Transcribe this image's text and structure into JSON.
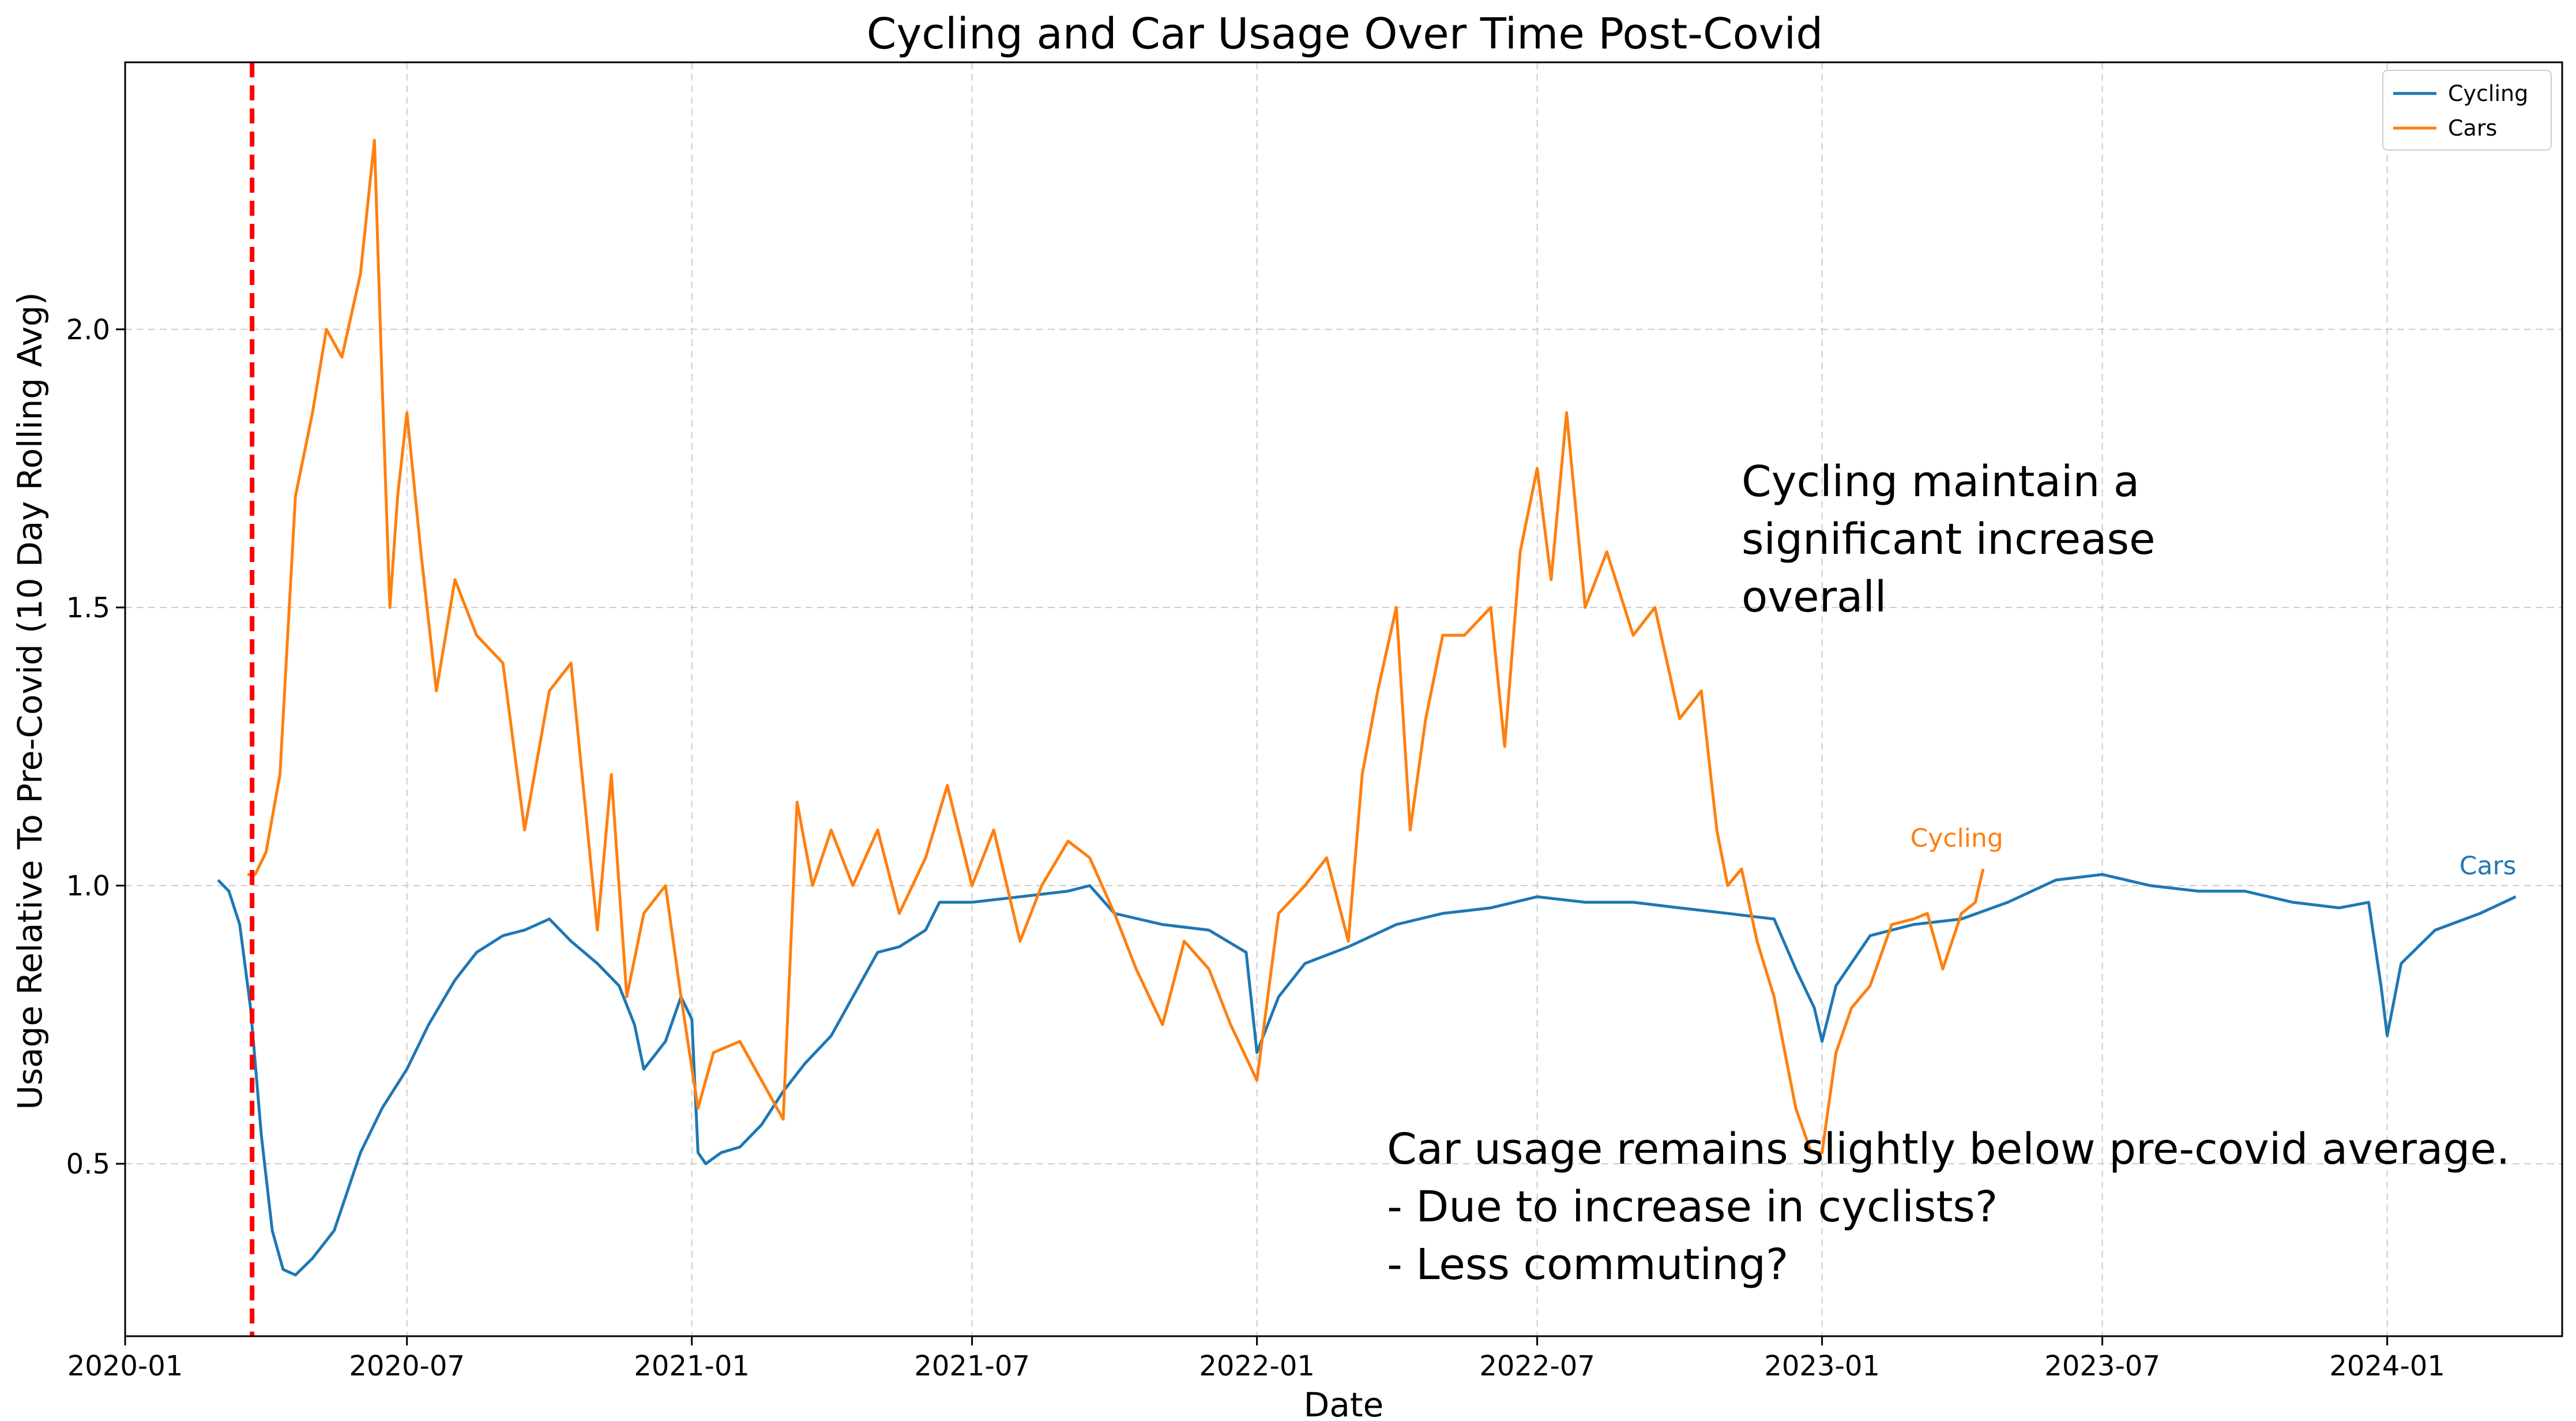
{
  "chart_data": {
    "type": "line",
    "title": "Cycling and Car Usage Over Time Post-Covid",
    "xlabel": "Date",
    "ylabel": "Usage Relative To Pre-Covid (10 Day Rolling Avg)",
    "x_range": [
      "2020-01-01",
      "2024-04-23"
    ],
    "ylim": [
      0.19,
      2.48
    ],
    "x_ticks": [
      "2020-01",
      "2020-07",
      "2021-01",
      "2021-07",
      "2022-01",
      "2022-07",
      "2023-01",
      "2023-07",
      "2024-01"
    ],
    "y_ticks": [
      0.5,
      1.0,
      1.5,
      2.0
    ],
    "grid": true,
    "legend_position": "top-right",
    "vline": {
      "x": "2020-03-23",
      "color": "#ff0000",
      "style": "dashed"
    },
    "series": [
      {
        "name": "Cycling",
        "color": "#1f77b4",
        "points": [
          [
            "2020-03-01",
            1.01
          ],
          [
            "2020-03-08",
            0.99
          ],
          [
            "2020-03-15",
            0.93
          ],
          [
            "2020-03-22",
            0.78
          ],
          [
            "2020-03-29",
            0.55
          ],
          [
            "2020-04-05",
            0.38
          ],
          [
            "2020-04-12",
            0.31
          ],
          [
            "2020-04-20",
            0.3
          ],
          [
            "2020-05-01",
            0.33
          ],
          [
            "2020-05-15",
            0.38
          ],
          [
            "2020-06-01",
            0.52
          ],
          [
            "2020-06-15",
            0.6
          ],
          [
            "2020-07-01",
            0.67
          ],
          [
            "2020-07-15",
            0.75
          ],
          [
            "2020-08-01",
            0.83
          ],
          [
            "2020-08-15",
            0.88
          ],
          [
            "2020-09-01",
            0.91
          ],
          [
            "2020-09-15",
            0.92
          ],
          [
            "2020-10-01",
            0.94
          ],
          [
            "2020-10-15",
            0.9
          ],
          [
            "2020-11-01",
            0.86
          ],
          [
            "2020-11-15",
            0.82
          ],
          [
            "2020-11-25",
            0.75
          ],
          [
            "2020-12-01",
            0.67
          ],
          [
            "2020-12-15",
            0.72
          ],
          [
            "2020-12-25",
            0.8
          ],
          [
            "2021-01-01",
            0.76
          ],
          [
            "2021-01-05",
            0.52
          ],
          [
            "2021-01-10",
            0.5
          ],
          [
            "2021-01-20",
            0.52
          ],
          [
            "2021-02-01",
            0.53
          ],
          [
            "2021-02-15",
            0.57
          ],
          [
            "2021-03-01",
            0.63
          ],
          [
            "2021-03-15",
            0.68
          ],
          [
            "2021-04-01",
            0.73
          ],
          [
            "2021-04-15",
            0.8
          ],
          [
            "2021-05-01",
            0.88
          ],
          [
            "2021-05-15",
            0.89
          ],
          [
            "2021-06-01",
            0.92
          ],
          [
            "2021-06-10",
            0.97
          ],
          [
            "2021-07-01",
            0.97
          ],
          [
            "2021-08-01",
            0.98
          ],
          [
            "2021-09-01",
            0.99
          ],
          [
            "2021-09-15",
            1.0
          ],
          [
            "2021-10-01",
            0.95
          ],
          [
            "2021-11-01",
            0.93
          ],
          [
            "2021-12-01",
            0.92
          ],
          [
            "2021-12-25",
            0.88
          ],
          [
            "2022-01-01",
            0.7
          ],
          [
            "2022-01-15",
            0.8
          ],
          [
            "2022-02-01",
            0.86
          ],
          [
            "2022-03-01",
            0.89
          ],
          [
            "2022-04-01",
            0.93
          ],
          [
            "2022-05-01",
            0.95
          ],
          [
            "2022-06-01",
            0.96
          ],
          [
            "2022-07-01",
            0.98
          ],
          [
            "2022-08-01",
            0.97
          ],
          [
            "2022-09-01",
            0.97
          ],
          [
            "2022-10-01",
            0.96
          ],
          [
            "2022-11-01",
            0.95
          ],
          [
            "2022-12-01",
            0.94
          ],
          [
            "2022-12-15",
            0.85
          ],
          [
            "2022-12-27",
            0.78
          ],
          [
            "2023-01-01",
            0.72
          ],
          [
            "2023-01-10",
            0.82
          ],
          [
            "2023-02-01",
            0.91
          ],
          [
            "2023-03-01",
            0.93
          ],
          [
            "2023-04-01",
            0.94
          ],
          [
            "2023-05-01",
            0.97
          ],
          [
            "2023-06-01",
            1.01
          ],
          [
            "2023-07-01",
            1.02
          ],
          [
            "2023-08-01",
            1.0
          ],
          [
            "2023-09-01",
            0.99
          ],
          [
            "2023-10-01",
            0.99
          ],
          [
            "2023-11-01",
            0.97
          ],
          [
            "2023-12-01",
            0.96
          ],
          [
            "2023-12-20",
            0.97
          ],
          [
            "2023-12-28",
            0.82
          ],
          [
            "2024-01-01",
            0.73
          ],
          [
            "2024-01-10",
            0.86
          ],
          [
            "2024-02-01",
            0.92
          ],
          [
            "2024-03-01",
            0.95
          ],
          [
            "2024-03-24",
            0.98
          ]
        ]
      },
      {
        "name": "Cars",
        "color": "#ff7f0e",
        "points": [
          [
            "2020-03-20",
            1.02
          ],
          [
            "2020-03-25",
            1.02
          ],
          [
            "2020-04-01",
            1.06
          ],
          [
            "2020-04-10",
            1.2
          ],
          [
            "2020-04-20",
            1.7
          ],
          [
            "2020-05-01",
            1.85
          ],
          [
            "2020-05-10",
            2.0
          ],
          [
            "2020-05-20",
            1.95
          ],
          [
            "2020-06-01",
            2.1
          ],
          [
            "2020-06-10",
            2.34
          ],
          [
            "2020-06-15",
            1.9
          ],
          [
            "2020-06-20",
            1.5
          ],
          [
            "2020-06-25",
            1.7
          ],
          [
            "2020-07-01",
            1.85
          ],
          [
            "2020-07-10",
            1.6
          ],
          [
            "2020-07-20",
            1.35
          ],
          [
            "2020-08-01",
            1.55
          ],
          [
            "2020-08-15",
            1.45
          ],
          [
            "2020-09-01",
            1.4
          ],
          [
            "2020-09-15",
            1.1
          ],
          [
            "2020-10-01",
            1.35
          ],
          [
            "2020-10-15",
            1.4
          ],
          [
            "2020-11-01",
            0.92
          ],
          [
            "2020-11-10",
            1.2
          ],
          [
            "2020-11-20",
            0.8
          ],
          [
            "2020-12-01",
            0.95
          ],
          [
            "2020-12-15",
            1.0
          ],
          [
            "2020-12-25",
            0.8
          ],
          [
            "2021-01-05",
            0.6
          ],
          [
            "2021-01-15",
            0.7
          ],
          [
            "2021-02-01",
            0.72
          ],
          [
            "2021-02-15",
            0.65
          ],
          [
            "2021-03-01",
            0.58
          ],
          [
            "2021-03-10",
            1.15
          ],
          [
            "2021-03-20",
            1.0
          ],
          [
            "2021-04-01",
            1.1
          ],
          [
            "2021-04-15",
            1.0
          ],
          [
            "2021-05-01",
            1.1
          ],
          [
            "2021-05-15",
            0.95
          ],
          [
            "2021-06-01",
            1.05
          ],
          [
            "2021-06-15",
            1.18
          ],
          [
            "2021-07-01",
            1.0
          ],
          [
            "2021-07-15",
            1.1
          ],
          [
            "2021-08-01",
            0.9
          ],
          [
            "2021-08-15",
            1.0
          ],
          [
            "2021-09-01",
            1.08
          ],
          [
            "2021-09-15",
            1.05
          ],
          [
            "2021-10-01",
            0.95
          ],
          [
            "2021-10-15",
            0.85
          ],
          [
            "2021-11-01",
            0.75
          ],
          [
            "2021-11-15",
            0.9
          ],
          [
            "2021-12-01",
            0.85
          ],
          [
            "2021-12-15",
            0.75
          ],
          [
            "2022-01-01",
            0.65
          ],
          [
            "2022-01-15",
            0.95
          ],
          [
            "2022-02-01",
            1.0
          ],
          [
            "2022-02-15",
            1.05
          ],
          [
            "2022-03-01",
            0.9
          ],
          [
            "2022-03-10",
            1.2
          ],
          [
            "2022-03-20",
            1.35
          ],
          [
            "2022-04-01",
            1.5
          ],
          [
            "2022-04-10",
            1.1
          ],
          [
            "2022-04-20",
            1.3
          ],
          [
            "2022-05-01",
            1.45
          ],
          [
            "2022-05-15",
            1.45
          ],
          [
            "2022-06-01",
            1.5
          ],
          [
            "2022-06-10",
            1.25
          ],
          [
            "2022-06-20",
            1.6
          ],
          [
            "2022-07-01",
            1.75
          ],
          [
            "2022-07-10",
            1.55
          ],
          [
            "2022-07-20",
            1.85
          ],
          [
            "2022-08-01",
            1.5
          ],
          [
            "2022-08-15",
            1.6
          ],
          [
            "2022-09-01",
            1.45
          ],
          [
            "2022-09-15",
            1.5
          ],
          [
            "2022-10-01",
            1.3
          ],
          [
            "2022-10-15",
            1.35
          ],
          [
            "2022-10-25",
            1.1
          ],
          [
            "2022-11-01",
            1.0
          ],
          [
            "2022-11-10",
            1.03
          ],
          [
            "2022-11-20",
            0.9
          ],
          [
            "2022-12-01",
            0.8
          ],
          [
            "2022-12-15",
            0.6
          ],
          [
            "2022-12-25",
            0.52
          ],
          [
            "2023-01-01",
            0.52
          ],
          [
            "2023-01-10",
            0.7
          ],
          [
            "2023-01-20",
            0.78
          ],
          [
            "2023-02-01",
            0.82
          ],
          [
            "2023-02-15",
            0.93
          ],
          [
            "2023-03-01",
            0.94
          ],
          [
            "2023-03-10",
            0.95
          ],
          [
            "2023-03-20",
            0.85
          ],
          [
            "2023-04-01",
            0.95
          ],
          [
            "2023-04-10",
            0.97
          ],
          [
            "2023-04-15",
            1.03
          ]
        ]
      }
    ],
    "line_labels": [
      {
        "text": "Cycling",
        "x": "2023-03-29",
        "y": 1.07,
        "color": "#ff7f0e"
      },
      {
        "text": "Cars",
        "x": "2024-03-06",
        "y": 1.02,
        "color": "#1f77b4"
      }
    ],
    "annotations": [
      {
        "lines": [
          "Cycling maintain a",
          "significant increase",
          "overall"
        ],
        "x": "2022-11-10",
        "y": 1.7
      },
      {
        "lines": [
          "Car usage remains slightly below pre-covid average.",
          "-    Due to increase in cyclists?",
          "-    Less commuting?"
        ],
        "x": "2022-03-26",
        "y": 0.5
      }
    ]
  }
}
